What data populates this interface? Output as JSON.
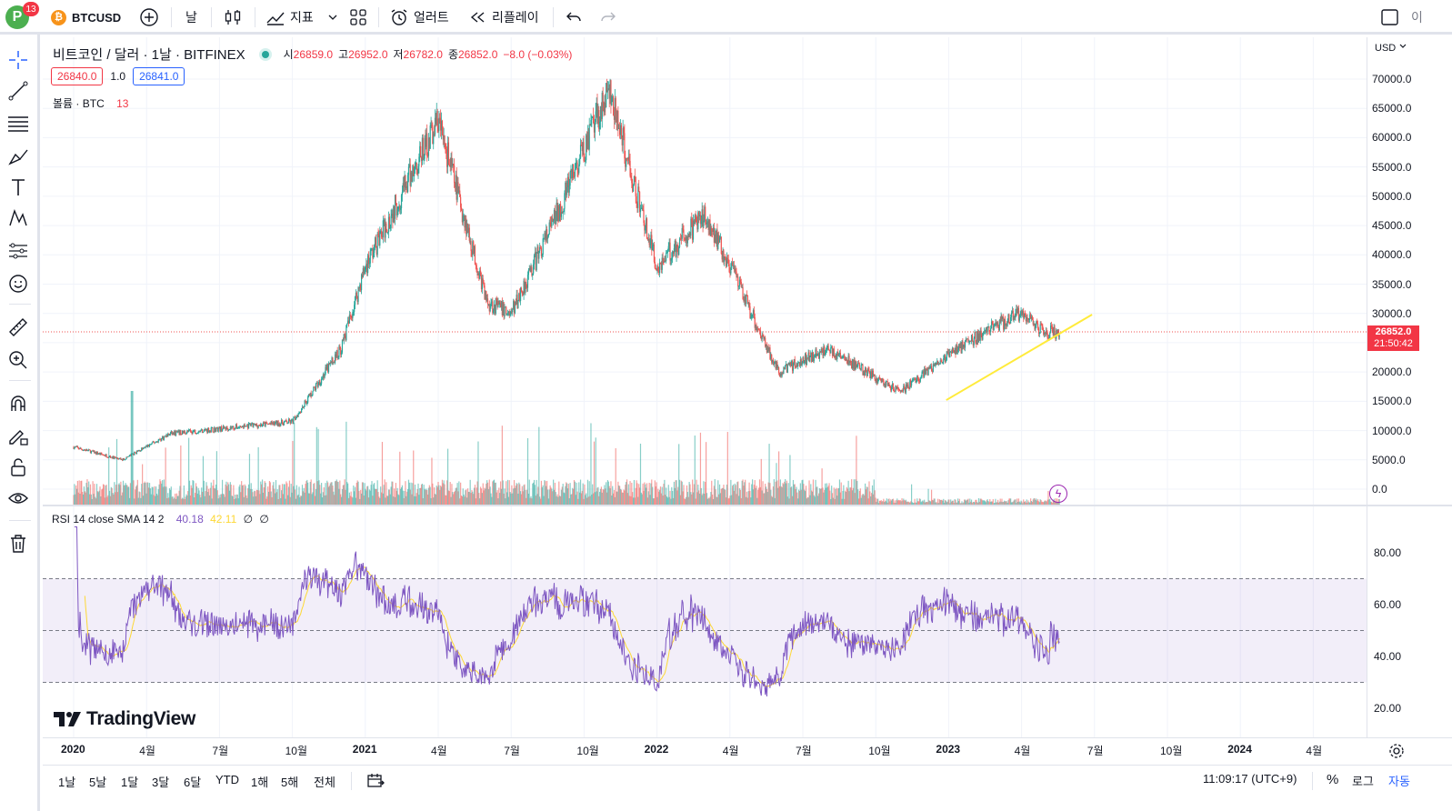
{
  "topbar": {
    "avatar_letter": "P",
    "notification_count": "13",
    "symbol": "BTCUSD",
    "interval": "날",
    "indicators_label": "지표",
    "alert_label": "얼러트",
    "replay_label": "리플레이",
    "right_cut_text": "이"
  },
  "legend": {
    "title": "비트코인 / 달러 · 1날 · BITFINEX",
    "open_label": "시",
    "open": "26859.0",
    "high_label": "고",
    "high": "26952.0",
    "low_label": "저",
    "low": "26782.0",
    "close_label": "종",
    "close": "26852.0",
    "change": "−8.0 (−0.03%)",
    "sell_price": "26840.0",
    "spread": "1.0",
    "buy_price": "26841.0",
    "volume_label": "볼륨 · BTC",
    "volume_value": "13"
  },
  "rsi_legend": {
    "label": "RSI 14 close SMA 14 2",
    "rsi_value": "40.18",
    "sma_value": "42.11",
    "extra1": "∅",
    "extra2": "∅"
  },
  "price_axis": {
    "currency": "USD",
    "ticks": [
      "70000.0",
      "65000.0",
      "60000.0",
      "55000.0",
      "50000.0",
      "45000.0",
      "40000.0",
      "35000.0",
      "30000.0",
      "25000.0",
      "20000.0",
      "15000.0",
      "10000.0",
      "5000.0",
      "0.0"
    ],
    "current_price": "26852.0",
    "countdown": "21:50:42"
  },
  "rsi_axis": {
    "ticks": [
      "80.00",
      "60.00",
      "40.00",
      "20.00"
    ]
  },
  "time_axis": [
    "2020",
    "4월",
    "7월",
    "10월",
    "2021",
    "4월",
    "7월",
    "10월",
    "2022",
    "4월",
    "7월",
    "10월",
    "2023",
    "4월",
    "7월",
    "10월",
    "2024",
    "4월"
  ],
  "bottom_bar": {
    "ranges": [
      "1날",
      "5날",
      "1달",
      "3달",
      "6달",
      "YTD",
      "1해",
      "5해",
      "전체"
    ],
    "clock": "11:09:17 (UTC+9)",
    "percent": "%",
    "log": "로그",
    "auto": "자동"
  },
  "watermark": "TradingView",
  "colors": {
    "up": "#26a69a",
    "down": "#ef5350",
    "rsi_line": "#7e57c2",
    "rsi_sma": "#fdd835",
    "trendline": "#ffeb3b",
    "accent": "#2962ff"
  },
  "chart_data": {
    "type": "candlestick",
    "symbol": "BTCUSD",
    "x_range": [
      "2020-01",
      "2023-05"
    ],
    "y_range": [
      0,
      70000
    ],
    "key_points": [
      {
        "x": "2020-01",
        "y": 7200
      },
      {
        "x": "2020-03",
        "y": 5000
      },
      {
        "x": "2020-05",
        "y": 9500
      },
      {
        "x": "2020-10",
        "y": 11500
      },
      {
        "x": "2020-12",
        "y": 24000
      },
      {
        "x": "2021-01",
        "y": 38000
      },
      {
        "x": "2021-04",
        "y": 63000
      },
      {
        "x": "2021-06",
        "y": 32000
      },
      {
        "x": "2021-07",
        "y": 30000
      },
      {
        "x": "2021-09",
        "y": 48000
      },
      {
        "x": "2021-11",
        "y": 68000
      },
      {
        "x": "2022-01",
        "y": 38000
      },
      {
        "x": "2022-03",
        "y": 47000
      },
      {
        "x": "2022-05",
        "y": 29000
      },
      {
        "x": "2022-06",
        "y": 20000
      },
      {
        "x": "2022-08",
        "y": 24000
      },
      {
        "x": "2022-11",
        "y": 16500
      },
      {
        "x": "2023-01",
        "y": 23000
      },
      {
        "x": "2023-03",
        "y": 28000
      },
      {
        "x": "2023-04",
        "y": 30000
      },
      {
        "x": "2023-05",
        "y": 26852
      }
    ],
    "rsi": {
      "length": 14,
      "source": "close",
      "sma": 14,
      "last": 40.18,
      "sma_last": 42.11,
      "upper": 70,
      "middle": 50,
      "lower": 30
    }
  }
}
